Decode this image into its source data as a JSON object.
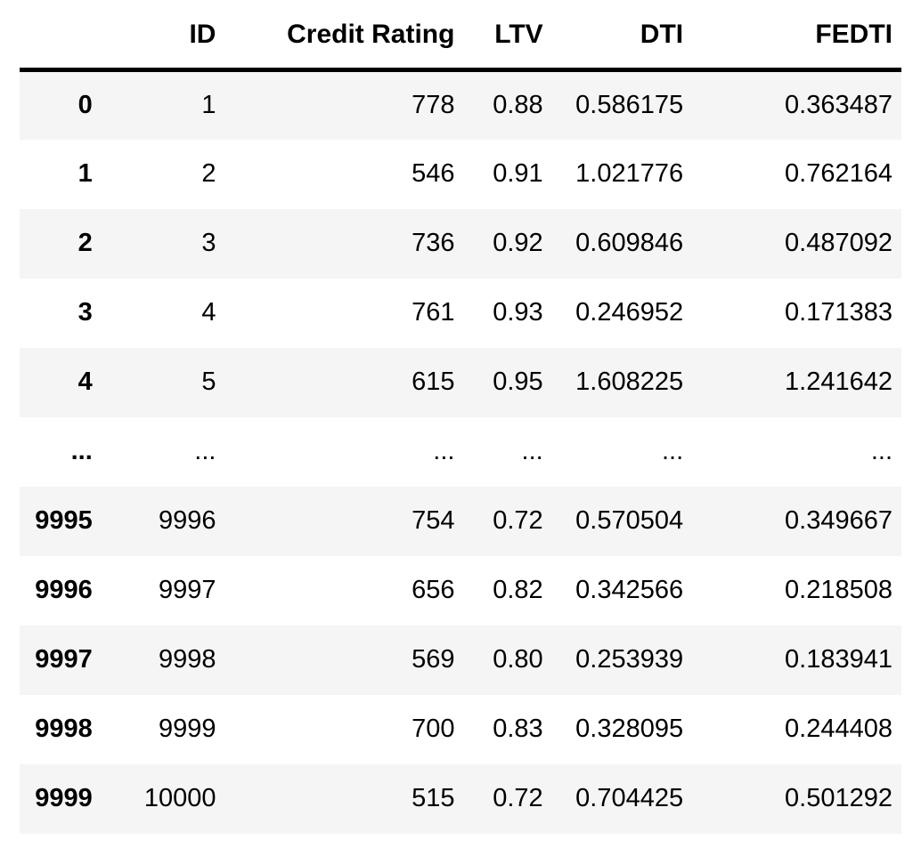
{
  "table": {
    "columns": [
      "",
      "ID",
      "Credit Rating",
      "LTV",
      "DTI",
      "FEDTI"
    ],
    "column_keys": [
      "id",
      "credit_rating",
      "ltv",
      "dti",
      "fedti"
    ],
    "rows": [
      {
        "index": "0",
        "id": "1",
        "credit_rating": "778",
        "ltv": "0.88",
        "dti": "0.586175",
        "fedti": "0.363487"
      },
      {
        "index": "1",
        "id": "2",
        "credit_rating": "546",
        "ltv": "0.91",
        "dti": "1.021776",
        "fedti": "0.762164"
      },
      {
        "index": "2",
        "id": "3",
        "credit_rating": "736",
        "ltv": "0.92",
        "dti": "0.609846",
        "fedti": "0.487092"
      },
      {
        "index": "3",
        "id": "4",
        "credit_rating": "761",
        "ltv": "0.93",
        "dti": "0.246952",
        "fedti": "0.171383"
      },
      {
        "index": "4",
        "id": "5",
        "credit_rating": "615",
        "ltv": "0.95",
        "dti": "1.608225",
        "fedti": "1.241642"
      },
      {
        "index": "...",
        "id": "...",
        "credit_rating": "...",
        "ltv": "...",
        "dti": "...",
        "fedti": "..."
      },
      {
        "index": "9995",
        "id": "9996",
        "credit_rating": "754",
        "ltv": "0.72",
        "dti": "0.570504",
        "fedti": "0.349667"
      },
      {
        "index": "9996",
        "id": "9997",
        "credit_rating": "656",
        "ltv": "0.82",
        "dti": "0.342566",
        "fedti": "0.218508"
      },
      {
        "index": "9997",
        "id": "9998",
        "credit_rating": "569",
        "ltv": "0.80",
        "dti": "0.253939",
        "fedti": "0.183941"
      },
      {
        "index": "9998",
        "id": "9999",
        "credit_rating": "700",
        "ltv": "0.83",
        "dti": "0.328095",
        "fedti": "0.244408"
      },
      {
        "index": "9999",
        "id": "10000",
        "credit_rating": "515",
        "ltv": "0.72",
        "dti": "0.704425",
        "fedti": "0.501292"
      }
    ],
    "colors": {
      "stripe": "#f5f5f5",
      "text": "#000000",
      "background": "#ffffff",
      "header_border": "#000000"
    }
  }
}
